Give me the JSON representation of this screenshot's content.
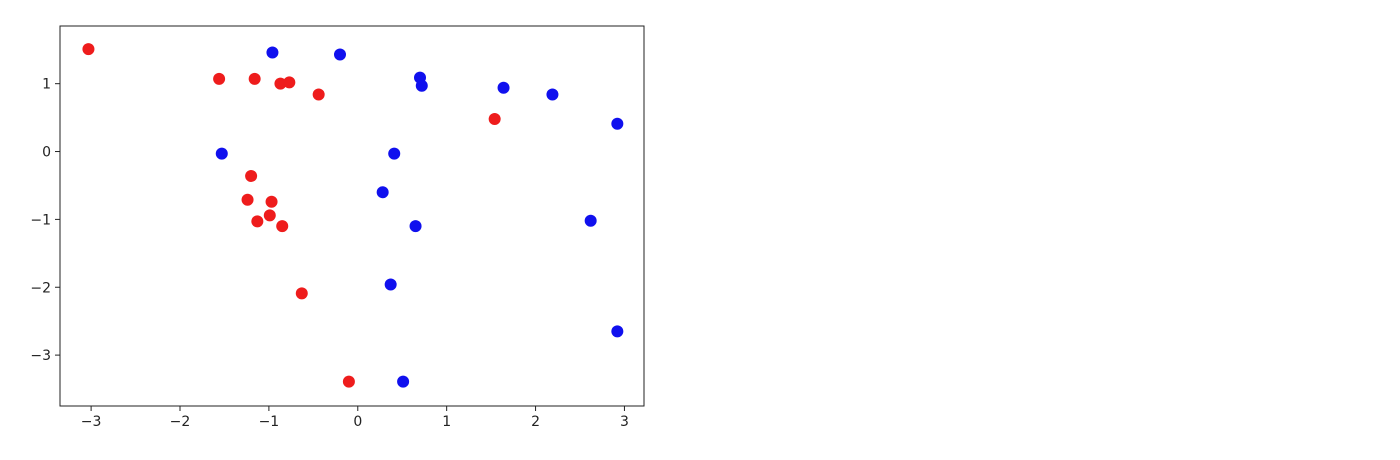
{
  "chart_data": {
    "type": "scatter",
    "title": "",
    "xlabel": "",
    "ylabel": "",
    "xlim": [
      -3.35,
      3.22
    ],
    "ylim": [
      -3.75,
      1.85
    ],
    "xticks": [
      -3,
      -2,
      -1,
      0,
      1,
      2,
      3
    ],
    "yticks": [
      -3,
      -2,
      -1,
      0,
      1
    ],
    "xtick_labels": [
      "−3",
      "−2",
      "−1",
      "0",
      "1",
      "2",
      "3"
    ],
    "ytick_labels": [
      "−3",
      "−2",
      "−1",
      "0",
      "1"
    ],
    "grid": false,
    "series": [
      {
        "color": "#ee1c1c",
        "points": [
          [
            -3.03,
            1.51
          ],
          [
            -1.56,
            1.07
          ],
          [
            -1.16,
            1.07
          ],
          [
            -0.87,
            1.0
          ],
          [
            -0.77,
            1.02
          ],
          [
            -0.44,
            0.84
          ],
          [
            1.54,
            0.48
          ],
          [
            -1.2,
            -0.36
          ],
          [
            -1.24,
            -0.71
          ],
          [
            -0.97,
            -0.74
          ],
          [
            -0.99,
            -0.94
          ],
          [
            -1.13,
            -1.03
          ],
          [
            -0.85,
            -1.1
          ],
          [
            -0.63,
            -2.09
          ],
          [
            -0.1,
            -3.39
          ]
        ]
      },
      {
        "color": "#1010ee",
        "points": [
          [
            -0.96,
            1.46
          ],
          [
            -0.2,
            1.43
          ],
          [
            0.7,
            1.09
          ],
          [
            0.72,
            0.97
          ],
          [
            1.64,
            0.94
          ],
          [
            2.19,
            0.84
          ],
          [
            2.92,
            0.41
          ],
          [
            -1.53,
            -0.03
          ],
          [
            0.41,
            -0.03
          ],
          [
            0.28,
            -0.6
          ],
          [
            0.65,
            -1.1
          ],
          [
            2.62,
            -1.02
          ],
          [
            0.37,
            -1.96
          ],
          [
            2.92,
            -2.65
          ],
          [
            0.51,
            -3.39
          ]
        ]
      }
    ]
  }
}
